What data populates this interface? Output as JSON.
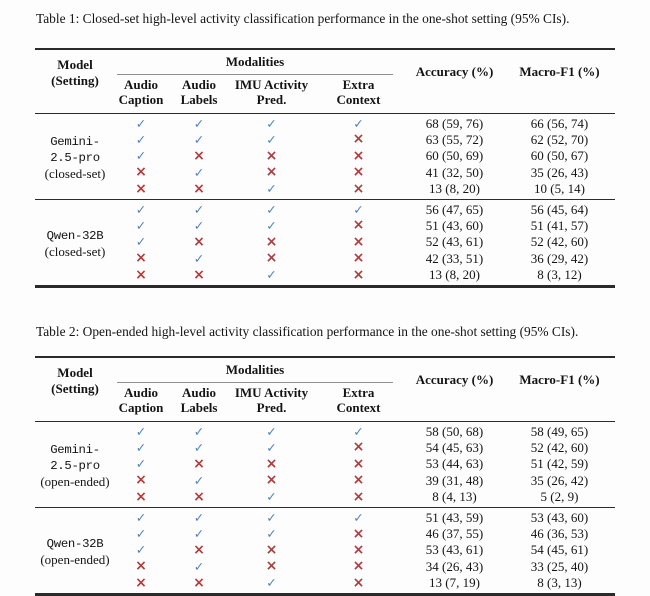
{
  "icons": {
    "check": {
      "name": "check-icon",
      "glyph": "✓",
      "color": "#4f81bd"
    },
    "cross": {
      "name": "cross-icon",
      "glyph": "×",
      "color": "#b03b3b"
    }
  },
  "colors": {
    "check_blue": "#4f81bd",
    "cross_red": "#b03b3b",
    "rule_dark": "#2b2b2b",
    "rule_light": "#8f8f8f"
  },
  "tables": [
    {
      "title": "Table 1: Closed-set high-level activity classification performance in the one-shot setting (95% CIs).",
      "header": {
        "model_line1": "Model",
        "model_line2": "(Setting)",
        "modalities": "Modalities",
        "subcols": [
          [
            "Audio",
            "Caption"
          ],
          [
            "Audio",
            "Labels"
          ],
          [
            "IMU Activity",
            "Pred."
          ],
          [
            "Extra",
            "Context"
          ]
        ],
        "accuracy": "Accuracy (%)",
        "macro_f1": "Macro-F1 (%)"
      },
      "groups": [
        {
          "model_lines": [
            "Gemini-",
            "2.5-pro"
          ],
          "setting": "(closed-set)",
          "rows": [
            {
              "modalities": [
                "check",
                "check",
                "check",
                "check"
              ],
              "accuracy": "68 (59, 76)",
              "macro_f1": "66 (56, 74)"
            },
            {
              "modalities": [
                "check",
                "check",
                "check",
                "cross"
              ],
              "accuracy": "63 (55, 72)",
              "macro_f1": "62 (52, 70)"
            },
            {
              "modalities": [
                "check",
                "cross",
                "cross",
                "cross"
              ],
              "accuracy": "60 (50, 69)",
              "macro_f1": "60 (50, 67)"
            },
            {
              "modalities": [
                "cross",
                "check",
                "cross",
                "cross"
              ],
              "accuracy": "41 (32, 50)",
              "macro_f1": "35 (26, 43)"
            },
            {
              "modalities": [
                "cross",
                "cross",
                "check",
                "cross"
              ],
              "accuracy": "13 (8, 20)",
              "macro_f1": "10 (5, 14)"
            }
          ]
        },
        {
          "model_lines": [
            "Qwen-32B"
          ],
          "setting": "(closed-set)",
          "rows": [
            {
              "modalities": [
                "check",
                "check",
                "check",
                "check"
              ],
              "accuracy": "56 (47, 65)",
              "macro_f1": "56 (45, 64)"
            },
            {
              "modalities": [
                "check",
                "check",
                "check",
                "cross"
              ],
              "accuracy": "51 (43, 60)",
              "macro_f1": "51 (41, 57)"
            },
            {
              "modalities": [
                "check",
                "cross",
                "cross",
                "cross"
              ],
              "accuracy": "52 (43, 61)",
              "macro_f1": "52 (42, 60)"
            },
            {
              "modalities": [
                "cross",
                "check",
                "cross",
                "cross"
              ],
              "accuracy": "42 (33, 51)",
              "macro_f1": "36 (29, 42)"
            },
            {
              "modalities": [
                "cross",
                "cross",
                "check",
                "cross"
              ],
              "accuracy": "13 (8, 20)",
              "macro_f1": "8 (3, 12)"
            }
          ]
        }
      ]
    },
    {
      "title": "Table 2: Open-ended high-level activity classification performance in the one-shot setting (95% CIs).",
      "header": {
        "model_line1": "Model",
        "model_line2": "(Setting)",
        "modalities": "Modalities",
        "subcols": [
          [
            "Audio",
            "Caption"
          ],
          [
            "Audio",
            "Labels"
          ],
          [
            "IMU Activity",
            "Pred."
          ],
          [
            "Extra",
            "Context"
          ]
        ],
        "accuracy": "Accuracy (%)",
        "macro_f1": "Macro-F1 (%)"
      },
      "groups": [
        {
          "model_lines": [
            "Gemini-",
            "2.5-pro"
          ],
          "setting": "(open-ended)",
          "rows": [
            {
              "modalities": [
                "check",
                "check",
                "check",
                "check"
              ],
              "accuracy": "58 (50, 68)",
              "macro_f1": "58 (49, 65)"
            },
            {
              "modalities": [
                "check",
                "check",
                "check",
                "cross"
              ],
              "accuracy": "54 (45, 63)",
              "macro_f1": "52 (42, 60)"
            },
            {
              "modalities": [
                "check",
                "cross",
                "cross",
                "cross"
              ],
              "accuracy": "53 (44, 63)",
              "macro_f1": "51 (42, 59)"
            },
            {
              "modalities": [
                "cross",
                "check",
                "cross",
                "cross"
              ],
              "accuracy": "39 (31, 48)",
              "macro_f1": "35 (26, 42)"
            },
            {
              "modalities": [
                "cross",
                "cross",
                "check",
                "cross"
              ],
              "accuracy": "8 (4, 13)",
              "macro_f1": "5 (2, 9)"
            }
          ]
        },
        {
          "model_lines": [
            "Qwen-32B"
          ],
          "setting": "(open-ended)",
          "rows": [
            {
              "modalities": [
                "check",
                "check",
                "check",
                "check"
              ],
              "accuracy": "51 (43, 59)",
              "macro_f1": "53 (43, 60)"
            },
            {
              "modalities": [
                "check",
                "check",
                "check",
                "cross"
              ],
              "accuracy": "46 (37, 55)",
              "macro_f1": "46 (36, 53)"
            },
            {
              "modalities": [
                "check",
                "cross",
                "cross",
                "cross"
              ],
              "accuracy": "53 (43, 61)",
              "macro_f1": "54 (45, 61)"
            },
            {
              "modalities": [
                "cross",
                "check",
                "cross",
                "cross"
              ],
              "accuracy": "34 (26, 43)",
              "macro_f1": "33 (25, 40)"
            },
            {
              "modalities": [
                "cross",
                "cross",
                "check",
                "cross"
              ],
              "accuracy": "13 (7, 19)",
              "macro_f1": "8 (3, 13)"
            }
          ]
        }
      ]
    }
  ]
}
